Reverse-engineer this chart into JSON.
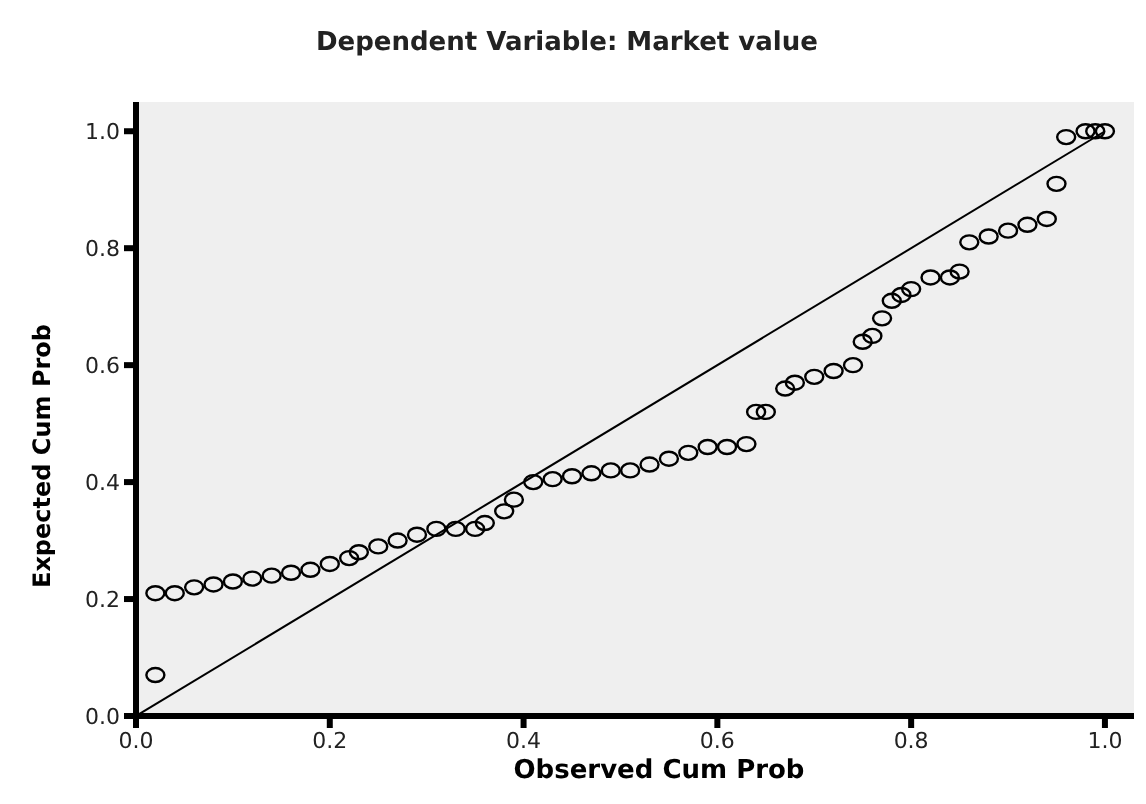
{
  "chart_data": {
    "type": "scatter",
    "title": "Dependent Variable: Market value",
    "xlabel": "Observed Cum Prob",
    "ylabel": "Expected Cum Prob",
    "xlim": [
      0,
      1.03
    ],
    "ylim": [
      0,
      1.05
    ],
    "xticks": [
      {
        "value": 0,
        "label": "0.0"
      },
      {
        "value": 0.2,
        "label": "0.2"
      },
      {
        "value": 0.4,
        "label": "0.4"
      },
      {
        "value": 0.6,
        "label": "0.6"
      },
      {
        "value": 0.8,
        "label": "0.8"
      },
      {
        "value": 1,
        "label": "1.0"
      }
    ],
    "yticks": [
      {
        "value": 0,
        "label": "0.0"
      },
      {
        "value": 0.2,
        "label": "0.2"
      },
      {
        "value": 0.4,
        "label": "0.4"
      },
      {
        "value": 0.6,
        "label": "0.6"
      },
      {
        "value": 0.8,
        "label": "0.8"
      },
      {
        "value": 1,
        "label": "1.0"
      }
    ],
    "grid": false,
    "series": [
      {
        "color": "#000000",
        "marker": "circle",
        "x": [
          0.02,
          0.02,
          0.04,
          0.06,
          0.08,
          0.1,
          0.12,
          0.14,
          0.16,
          0.18,
          0.2,
          0.22,
          0.23,
          0.25,
          0.27,
          0.29,
          0.31,
          0.33,
          0.35,
          0.36,
          0.38,
          0.39,
          0.41,
          0.43,
          0.45,
          0.47,
          0.49,
          0.51,
          0.53,
          0.55,
          0.57,
          0.59,
          0.61,
          0.63,
          0.64,
          0.65,
          0.67,
          0.68,
          0.7,
          0.72,
          0.74,
          0.75,
          0.76,
          0.77,
          0.78,
          0.79,
          0.8,
          0.82,
          0.84,
          0.85,
          0.86,
          0.88,
          0.9,
          0.92,
          0.94,
          0.95,
          0.96,
          0.98,
          0.99,
          1.0
        ],
        "values": [
          0.07,
          0.21,
          0.21,
          0.22,
          0.225,
          0.23,
          0.235,
          0.24,
          0.245,
          0.25,
          0.26,
          0.27,
          0.28,
          0.29,
          0.3,
          0.31,
          0.32,
          0.32,
          0.32,
          0.33,
          0.35,
          0.37,
          0.4,
          0.405,
          0.41,
          0.415,
          0.42,
          0.42,
          0.43,
          0.44,
          0.45,
          0.46,
          0.46,
          0.465,
          0.52,
          0.52,
          0.56,
          0.57,
          0.58,
          0.59,
          0.6,
          0.64,
          0.65,
          0.68,
          0.71,
          0.72,
          0.73,
          0.75,
          0.75,
          0.76,
          0.81,
          0.82,
          0.83,
          0.84,
          0.85,
          0.91,
          0.99,
          1.0,
          1.0,
          1.0
        ]
      },
      {
        "type": "line",
        "marker": "none",
        "color": "#000000",
        "x": [
          0,
          1
        ],
        "values": [
          0,
          1
        ]
      }
    ]
  }
}
